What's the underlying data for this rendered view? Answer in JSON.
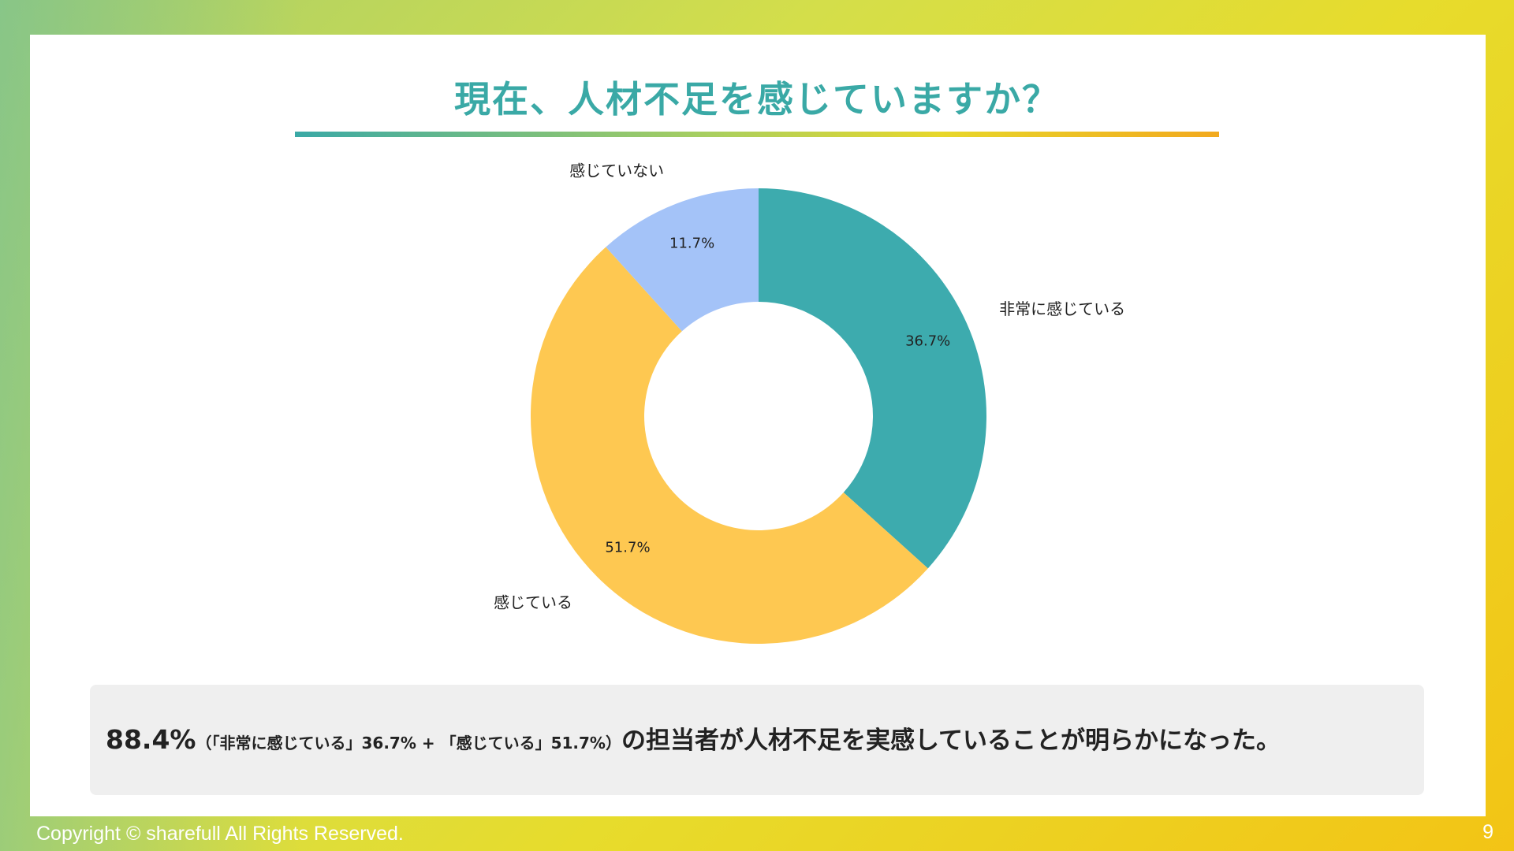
{
  "slide": {
    "title": "現在、人材不足を感じていますか？",
    "summary_main": "88.4%",
    "summary_detail": "（「非常に感じている」36.7% + 「感じている」51.7%）",
    "summary_rest": "の担当者が人材不足を実感していることが明らかになった。",
    "copyright": "Copyright © sharefull All Rights Reserved.",
    "page_number": "9"
  },
  "chart_data": {
    "type": "pie",
    "style": "donut",
    "title": "",
    "categories": [
      "非常に感じている",
      "感じている",
      "感じていない"
    ],
    "values": [
      36.7,
      51.7,
      11.7
    ],
    "value_labels": [
      "36.7%",
      "51.7%",
      "11.7%"
    ],
    "colors": [
      "#3dabae",
      "#fec851",
      "#a4c3f8"
    ],
    "start": "top",
    "direction": "clockwise",
    "legend": "none"
  }
}
